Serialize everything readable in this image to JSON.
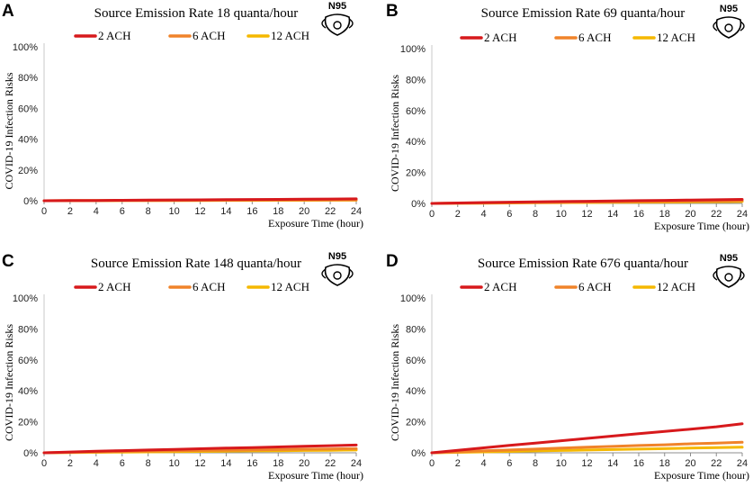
{
  "chart_data": [
    {
      "panel": "A",
      "type": "line",
      "title": "Source Emission Rate 18 quanta/hour",
      "mask": "N95",
      "xlabel": "Exposure Time (hour)",
      "ylabel": "COVID-19 Infection Risks",
      "xlim": [
        0,
        24
      ],
      "ylim": [
        0,
        100
      ],
      "x_ticks": [
        "0",
        "2",
        "4",
        "6",
        "8",
        "10",
        "12",
        "14",
        "16",
        "18",
        "20",
        "22",
        "24"
      ],
      "y_ticks": [
        "0%",
        "20%",
        "40%",
        "60%",
        "80%",
        "100%"
      ],
      "x": [
        0,
        2,
        4,
        6,
        8,
        10,
        12,
        14,
        16,
        18,
        20,
        22,
        24
      ],
      "series": [
        {
          "name": "2 ACH",
          "color": "#d7191c",
          "values": [
            0,
            0.1,
            0.2,
            0.3,
            0.4,
            0.5,
            0.6,
            0.7,
            0.8,
            0.9,
            1.0,
            1.1,
            1.2
          ]
        },
        {
          "name": "6 ACH",
          "color": "#f0832a",
          "values": [
            0,
            0.05,
            0.1,
            0.15,
            0.2,
            0.25,
            0.3,
            0.35,
            0.4,
            0.45,
            0.5,
            0.55,
            0.6
          ]
        },
        {
          "name": "12 ACH",
          "color": "#f5b800",
          "values": [
            0,
            0.03,
            0.06,
            0.09,
            0.12,
            0.15,
            0.18,
            0.21,
            0.24,
            0.27,
            0.3,
            0.33,
            0.36
          ]
        }
      ]
    },
    {
      "panel": "B",
      "type": "line",
      "title": "Source Emission Rate 69 quanta/hour",
      "mask": "N95",
      "xlabel": "Exposure Time (hour)",
      "ylabel": "COVID-19 Infection Risks",
      "xlim": [
        0,
        24
      ],
      "ylim": [
        0,
        100
      ],
      "x_ticks": [
        "0",
        "2",
        "4",
        "6",
        "8",
        "10",
        "12",
        "14",
        "16",
        "18",
        "20",
        "22",
        "24"
      ],
      "y_ticks": [
        "0%",
        "20%",
        "40%",
        "60%",
        "80%",
        "100%"
      ],
      "x": [
        0,
        2,
        4,
        6,
        8,
        10,
        12,
        14,
        16,
        18,
        20,
        22,
        24
      ],
      "series": [
        {
          "name": "2 ACH",
          "color": "#d7191c",
          "values": [
            0,
            0.3,
            0.6,
            0.8,
            1.0,
            1.2,
            1.4,
            1.6,
            1.8,
            2.0,
            2.2,
            2.4,
            2.6
          ]
        },
        {
          "name": "6 ACH",
          "color": "#f0832a",
          "values": [
            0,
            0.15,
            0.3,
            0.45,
            0.6,
            0.75,
            0.9,
            1.05,
            1.2,
            1.35,
            1.5,
            1.65,
            1.8
          ]
        },
        {
          "name": "12 ACH",
          "color": "#f5b800",
          "values": [
            0,
            0.1,
            0.2,
            0.3,
            0.4,
            0.5,
            0.6,
            0.7,
            0.8,
            0.9,
            1.0,
            1.1,
            1.2
          ]
        }
      ]
    },
    {
      "panel": "C",
      "type": "line",
      "title": "Source Emission Rate 148 quanta/hour",
      "mask": "N95",
      "xlabel": "Exposure Time (hour)",
      "ylabel": "COVID-19 Infection Risks",
      "xlim": [
        0,
        24
      ],
      "ylim": [
        0,
        100
      ],
      "x_ticks": [
        "0",
        "2",
        "4",
        "6",
        "8",
        "10",
        "12",
        "14",
        "16",
        "18",
        "20",
        "22",
        "24"
      ],
      "y_ticks": [
        "0%",
        "20%",
        "40%",
        "60%",
        "80%",
        "100%"
      ],
      "x": [
        0,
        2,
        4,
        6,
        8,
        10,
        12,
        14,
        16,
        18,
        20,
        22,
        24
      ],
      "series": [
        {
          "name": "2 ACH",
          "color": "#d7191c",
          "values": [
            0,
            0.5,
            1.0,
            1.4,
            1.8,
            2.2,
            2.6,
            3.0,
            3.4,
            3.8,
            4.2,
            4.6,
            5.0
          ]
        },
        {
          "name": "6 ACH",
          "color": "#f0832a",
          "values": [
            0,
            0.3,
            0.6,
            0.9,
            1.1,
            1.3,
            1.5,
            1.7,
            1.9,
            2.1,
            2.3,
            2.5,
            2.7
          ]
        },
        {
          "name": "12 ACH",
          "color": "#f5b800",
          "values": [
            0,
            0.15,
            0.3,
            0.45,
            0.6,
            0.75,
            0.9,
            1.05,
            1.2,
            1.35,
            1.5,
            1.65,
            1.8
          ]
        }
      ]
    },
    {
      "panel": "D",
      "type": "line",
      "title": "Source Emission Rate 676 quanta/hour",
      "mask": "N95",
      "xlabel": "Exposure Time (hour)",
      "ylabel": "COVID-19 Infection Risks",
      "xlim": [
        0,
        24
      ],
      "ylim": [
        0,
        100
      ],
      "x_ticks": [
        "0",
        "2",
        "4",
        "6",
        "8",
        "10",
        "12",
        "14",
        "16",
        "18",
        "20",
        "22",
        "24"
      ],
      "y_ticks": [
        "0%",
        "20%",
        "40%",
        "60%",
        "80%",
        "100%"
      ],
      "x": [
        0,
        2,
        4,
        6,
        8,
        10,
        12,
        14,
        16,
        18,
        20,
        22,
        24
      ],
      "series": [
        {
          "name": "2 ACH",
          "color": "#d7191c",
          "values": [
            0,
            1.6,
            3.2,
            4.8,
            6.3,
            7.8,
            9.3,
            10.8,
            12.3,
            13.8,
            15.3,
            16.8,
            18.7
          ]
        },
        {
          "name": "6 ACH",
          "color": "#f0832a",
          "values": [
            0,
            0.6,
            1.2,
            1.8,
            2.4,
            3.0,
            3.6,
            4.1,
            4.7,
            5.2,
            5.8,
            6.3,
            6.8
          ]
        },
        {
          "name": "12 ACH",
          "color": "#f5b800",
          "values": [
            0,
            0.3,
            0.6,
            0.9,
            1.2,
            1.5,
            1.8,
            2.1,
            2.4,
            2.7,
            3.0,
            3.3,
            3.6
          ]
        }
      ]
    }
  ]
}
